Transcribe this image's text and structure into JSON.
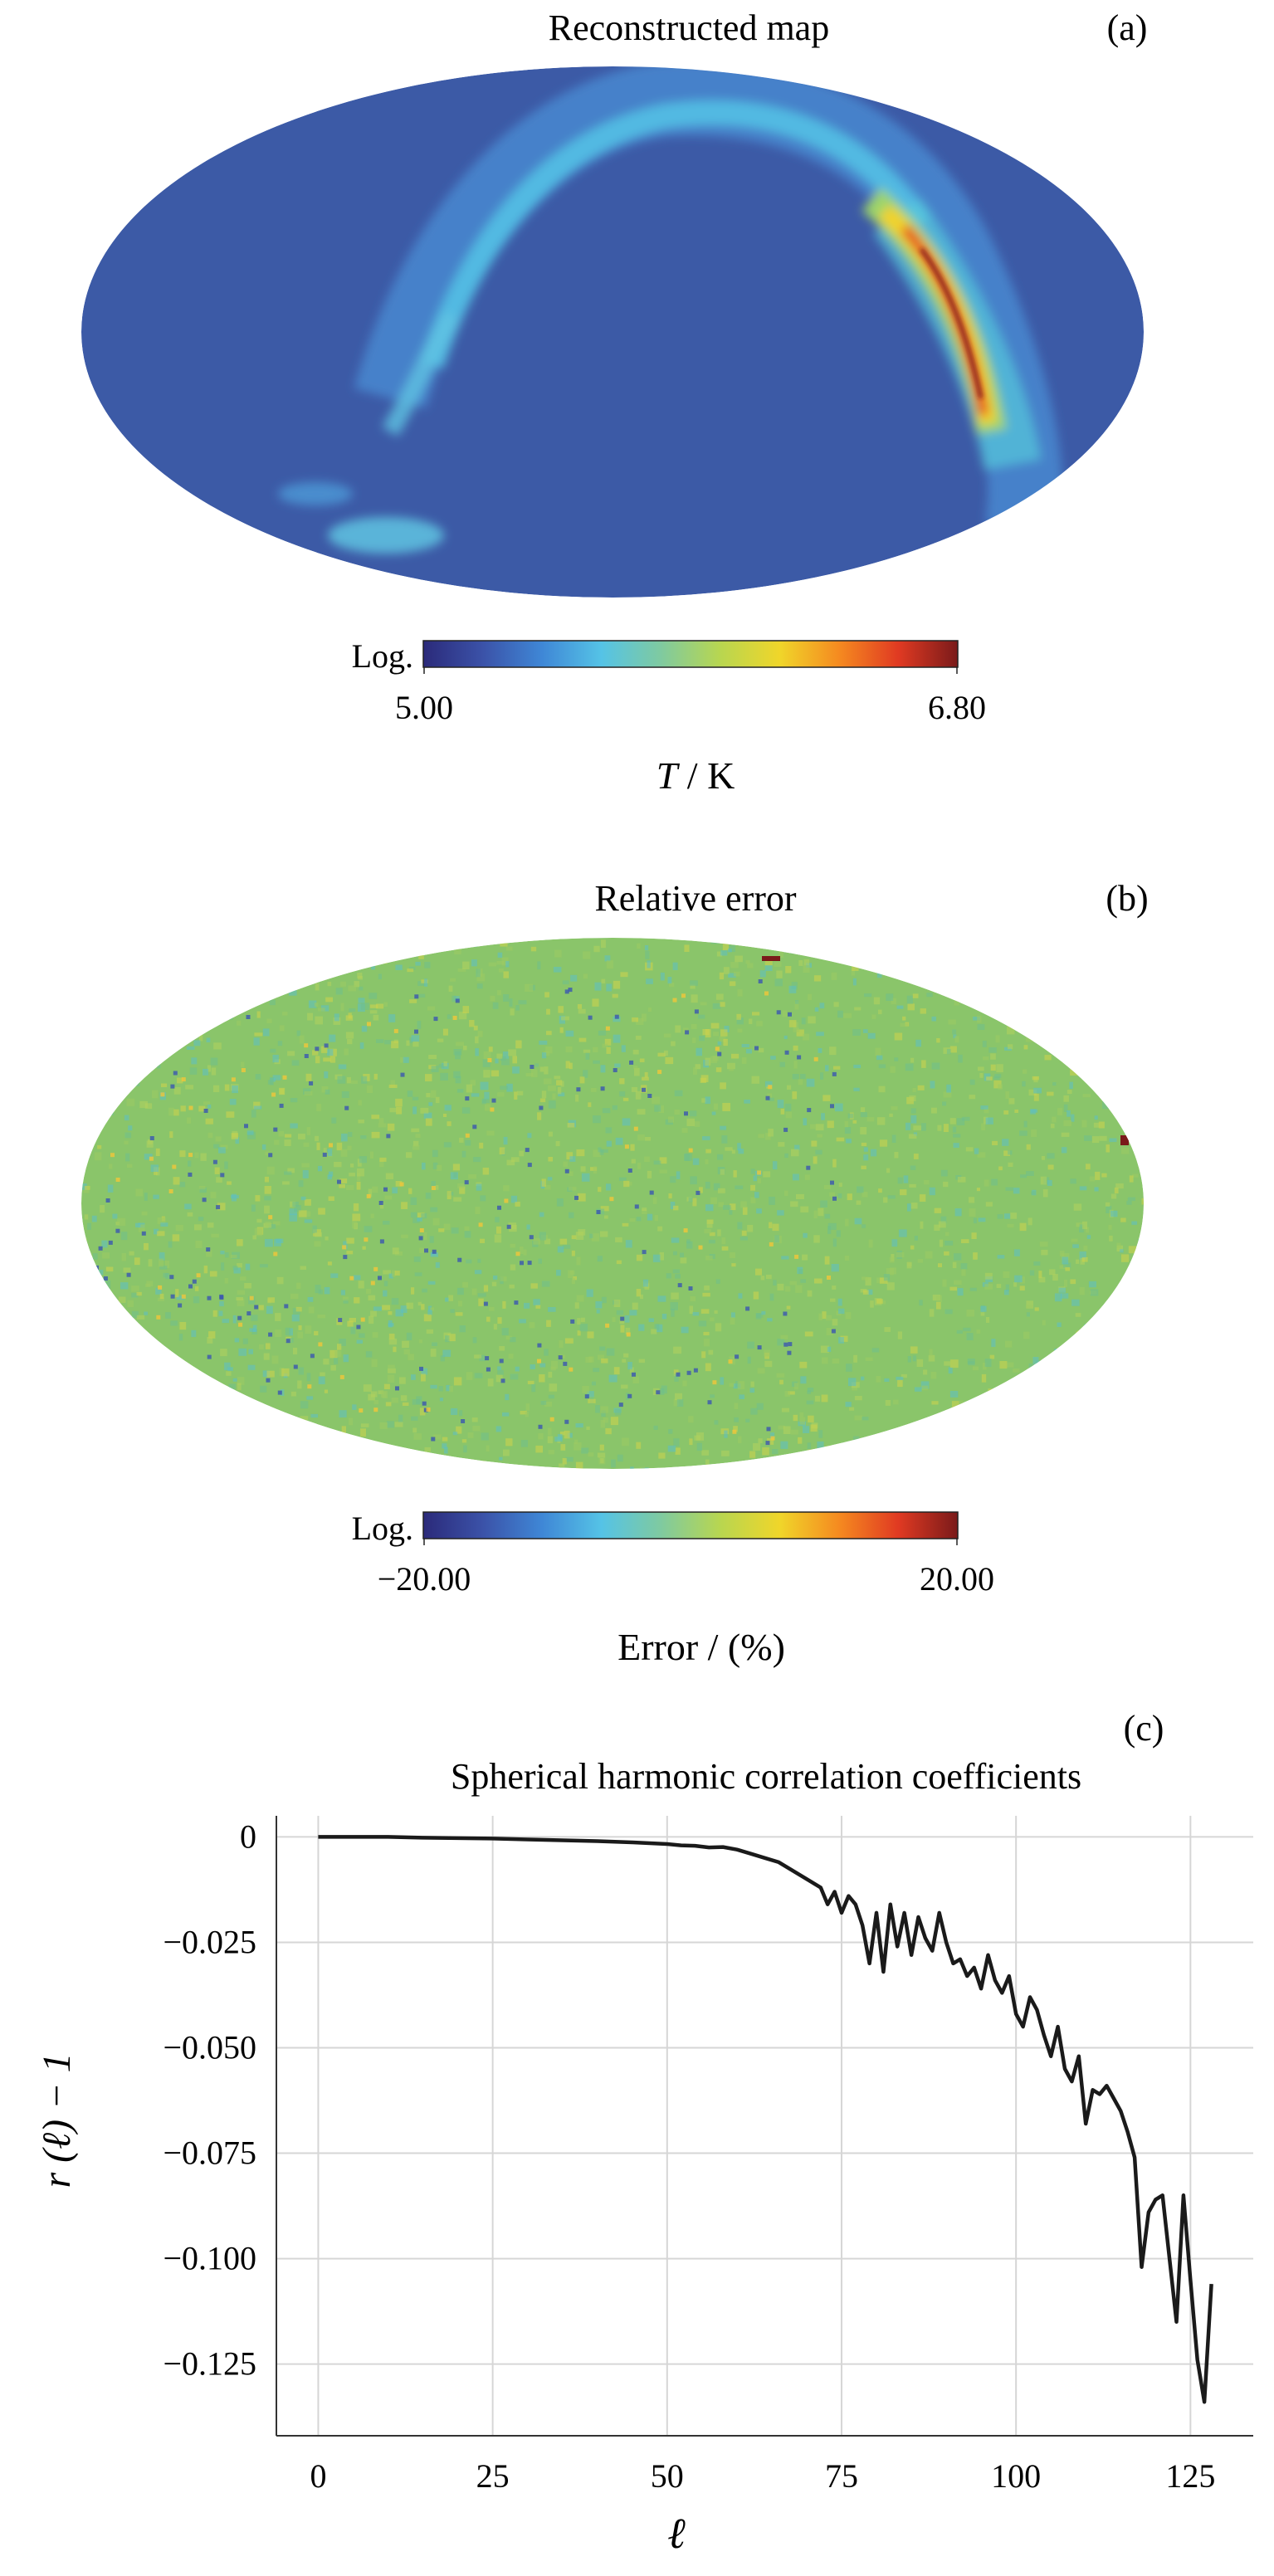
{
  "panel_a": {
    "title": "Reconstructed map",
    "tag": "(a)",
    "colorbar": {
      "scale": "Log.",
      "min_label": "5.00",
      "max_label": "6.80"
    },
    "unit_italic": "T",
    "unit_rest": " / K"
  },
  "panel_b": {
    "title": "Relative error",
    "tag": "(b)",
    "colorbar": {
      "scale": "Log.",
      "min_label": "−20.00",
      "max_label": "20.00"
    },
    "unit": "Error / (%)"
  },
  "panel_c": {
    "tag": "(c)"
  },
  "colors": {
    "map_background": "#3c5aa6",
    "error_background": "#8ac56a",
    "colormap": [
      "#2b2a7a",
      "#3b52a8",
      "#3f87d6",
      "#55c3e6",
      "#7fcaa0",
      "#b8d650",
      "#f0d62a",
      "#f58a20",
      "#e03a22",
      "#7a1a1a"
    ],
    "line": "#1a1a1a",
    "grid": "#d6d6d6"
  },
  "chart_data": {
    "type": "line",
    "title": "Spherical harmonic correlation coefficients",
    "xlabel": "ℓ",
    "ylabel": "r (ℓ) − 1",
    "xlim": [
      -6,
      134
    ],
    "ylim": [
      -0.142,
      0.005
    ],
    "xticks": [
      0,
      25,
      50,
      75,
      100,
      125
    ],
    "xtick_labels": [
      "0",
      "25",
      "50",
      "75",
      "100",
      "125"
    ],
    "yticks": [
      0,
      -0.025,
      -0.05,
      -0.075,
      -0.1,
      -0.125
    ],
    "ytick_labels": [
      "0",
      "−0.025",
      "−0.050",
      "−0.075",
      "−0.100",
      "−0.125"
    ],
    "grid": true,
    "series": [
      {
        "x": [
          0,
          5,
          10,
          15,
          20,
          25,
          30,
          35,
          40,
          45,
          50,
          52,
          54,
          56,
          58,
          60,
          62,
          64,
          66,
          68,
          70,
          72,
          73,
          74,
          75,
          76,
          77,
          78,
          79,
          80,
          81,
          82,
          83,
          84,
          85,
          86,
          87,
          88,
          89,
          90,
          91,
          92,
          93,
          94,
          95,
          96,
          97,
          98,
          99,
          100,
          101,
          102,
          103,
          104,
          105,
          106,
          107,
          108,
          109,
          110,
          111,
          112,
          113,
          114,
          115,
          116,
          117,
          118,
          119,
          120,
          121,
          122,
          123,
          124,
          125,
          126,
          127,
          128
        ],
        "y": [
          0,
          0,
          0,
          -0.0002,
          -0.0003,
          -0.0004,
          -0.0006,
          -0.0008,
          -0.001,
          -0.0013,
          -0.0017,
          -0.002,
          -0.0021,
          -0.0025,
          -0.0024,
          -0.003,
          -0.004,
          -0.005,
          -0.006,
          -0.008,
          -0.01,
          -0.012,
          -0.016,
          -0.013,
          -0.018,
          -0.014,
          -0.016,
          -0.021,
          -0.03,
          -0.018,
          -0.032,
          -0.016,
          -0.026,
          -0.018,
          -0.028,
          -0.019,
          -0.024,
          -0.027,
          -0.018,
          -0.025,
          -0.03,
          -0.029,
          -0.033,
          -0.031,
          -0.036,
          -0.028,
          -0.034,
          -0.037,
          -0.033,
          -0.042,
          -0.045,
          -0.038,
          -0.041,
          -0.047,
          -0.052,
          -0.045,
          -0.055,
          -0.058,
          -0.052,
          -0.068,
          -0.06,
          -0.061,
          -0.059,
          -0.062,
          -0.065,
          -0.07,
          -0.076,
          -0.102,
          -0.089,
          -0.086,
          -0.085,
          -0.1,
          -0.115,
          -0.085,
          -0.105,
          -0.124,
          -0.134,
          -0.106
        ]
      }
    ]
  }
}
